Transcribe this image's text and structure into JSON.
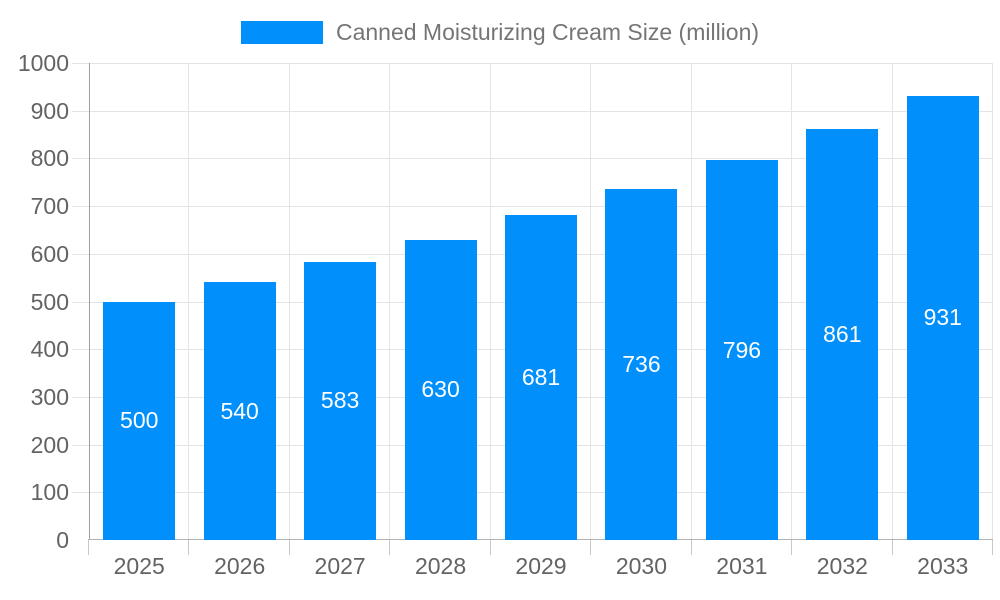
{
  "chart_data": {
    "type": "bar",
    "title": "",
    "legend": "Canned Moisturizing Cream Size (million)",
    "legend_position": "top",
    "categories": [
      "2025",
      "2026",
      "2027",
      "2028",
      "2029",
      "2030",
      "2031",
      "2032",
      "2033"
    ],
    "series": [
      {
        "name": "Canned Moisturizing Cream Size (million)",
        "values": [
          500,
          540,
          583,
          630,
          681,
          736,
          796,
          861,
          931
        ]
      }
    ],
    "value_labels": "inside-center",
    "xlabel": "",
    "ylabel": "",
    "ylim": [
      0,
      1000
    ],
    "yticks": [
      0,
      100,
      200,
      300,
      400,
      500,
      600,
      700,
      800,
      900,
      1000
    ],
    "grid": true,
    "colors": {
      "bar": "#008ffb",
      "value_label": "#ffffff",
      "grid_line": "#e4e4e4",
      "axis_line_y": "#9e9e9e",
      "axis_line_x": "#b3b3b3",
      "x_tick_mark": "#c9c9c9",
      "tick_label": "#636363",
      "legend_text": "#757575",
      "background": "#ffffff"
    }
  }
}
